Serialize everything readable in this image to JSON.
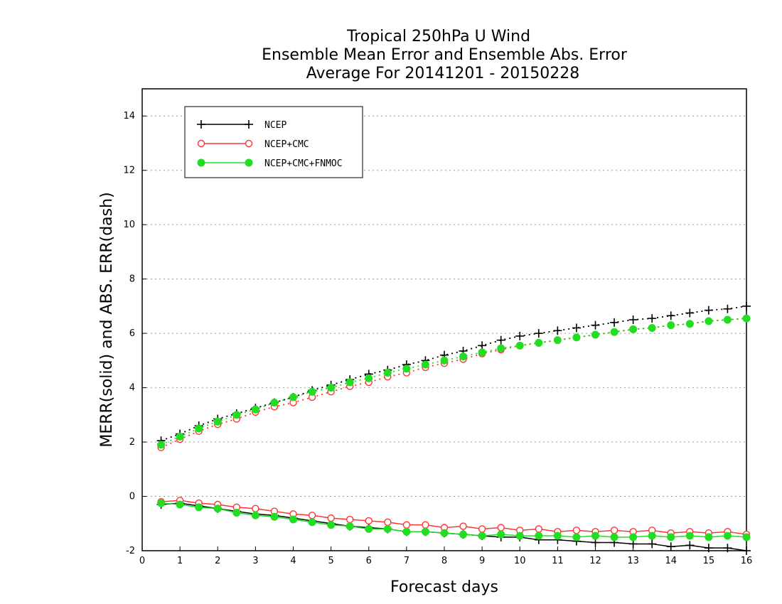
{
  "chart_data": {
    "type": "line",
    "title": [
      "Tropical 250hPa U Wind",
      "Ensemble Mean Error and Ensemble Abs. Error",
      "Average For 20141201 - 20150228"
    ],
    "xlabel": "Forecast days",
    "ylabel": "MERR(solid) and ABS. ERR(dash)",
    "xlim": [
      0,
      16
    ],
    "ylim": [
      -2,
      15
    ],
    "x_ticks": [
      "0",
      "1",
      "2",
      "3",
      "4",
      "5",
      "6",
      "7",
      "8",
      "9",
      "10",
      "11",
      "12",
      "13",
      "14",
      "15",
      "16"
    ],
    "y_ticks": [
      "-2",
      "0",
      "2",
      "4",
      "6",
      "8",
      "10",
      "12",
      "14"
    ],
    "grid": "horizontal dotted",
    "legend_position": "top-left",
    "x": [
      0.5,
      1,
      1.5,
      2,
      2.5,
      3,
      3.5,
      4,
      4.5,
      5,
      5.5,
      6,
      6.5,
      7,
      7.5,
      8,
      8.5,
      9,
      9.5,
      10,
      10.5,
      11,
      11.5,
      12,
      12.5,
      13,
      13.5,
      14,
      14.5,
      15,
      15.5,
      16
    ],
    "series": [
      {
        "name": "NCEP",
        "color": "#000000",
        "marker": "plus",
        "mean_error": [
          -0.3,
          -0.25,
          -0.35,
          -0.45,
          -0.55,
          -0.65,
          -0.7,
          -0.8,
          -0.9,
          -1.0,
          -1.1,
          -1.15,
          -1.2,
          -1.3,
          -1.3,
          -1.35,
          -1.4,
          -1.45,
          -1.5,
          -1.5,
          -1.6,
          -1.6,
          -1.65,
          -1.7,
          -1.7,
          -1.75,
          -1.75,
          -1.85,
          -1.8,
          -1.9,
          -1.9,
          -2.0
        ],
        "abs_error": [
          2.05,
          2.3,
          2.6,
          2.85,
          3.05,
          3.25,
          3.45,
          3.65,
          3.9,
          4.1,
          4.3,
          4.5,
          4.65,
          4.85,
          5.0,
          5.2,
          5.35,
          5.55,
          5.75,
          5.9,
          6.0,
          6.1,
          6.2,
          6.3,
          6.4,
          6.5,
          6.55,
          6.65,
          6.75,
          6.85,
          6.9,
          7.0
        ]
      },
      {
        "name": "NCEP+CMC",
        "color": "#ff3333",
        "marker": "open-circle",
        "mean_error": [
          -0.2,
          -0.15,
          -0.25,
          -0.3,
          -0.4,
          -0.45,
          -0.55,
          -0.65,
          -0.7,
          -0.8,
          -0.85,
          -0.9,
          -0.95,
          -1.05,
          -1.05,
          -1.15,
          -1.1,
          -1.2,
          -1.15,
          -1.25,
          -1.2,
          -1.3,
          -1.25,
          -1.3,
          -1.25,
          -1.3,
          -1.25,
          -1.35,
          -1.3,
          -1.35,
          -1.3,
          -1.4
        ],
        "abs_error": [
          1.8,
          2.1,
          2.4,
          2.65,
          2.85,
          3.1,
          3.3,
          3.45,
          3.65,
          3.85,
          4.05,
          4.2,
          4.4,
          4.55,
          4.75,
          4.9,
          5.05,
          5.25,
          5.4,
          5.55,
          5.65,
          5.75,
          5.85,
          5.95,
          6.05,
          6.15,
          6.2,
          6.3,
          6.35,
          6.45,
          6.5,
          6.55
        ]
      },
      {
        "name": "NCEP+CMC+FNMOC",
        "color": "#22dd22",
        "marker": "filled-circle",
        "mean_error": [
          -0.25,
          -0.3,
          -0.4,
          -0.45,
          -0.6,
          -0.7,
          -0.75,
          -0.85,
          -0.95,
          -1.05,
          -1.1,
          -1.2,
          -1.2,
          -1.3,
          -1.3,
          -1.35,
          -1.4,
          -1.45,
          -1.4,
          -1.45,
          -1.45,
          -1.45,
          -1.5,
          -1.45,
          -1.5,
          -1.5,
          -1.45,
          -1.5,
          -1.45,
          -1.5,
          -1.45,
          -1.5
        ],
        "abs_error": [
          1.9,
          2.2,
          2.5,
          2.75,
          3.0,
          3.2,
          3.45,
          3.65,
          3.85,
          4.0,
          4.2,
          4.35,
          4.55,
          4.7,
          4.85,
          5.0,
          5.15,
          5.3,
          5.45,
          5.55,
          5.65,
          5.75,
          5.85,
          5.95,
          6.05,
          6.15,
          6.2,
          6.3,
          6.35,
          6.45,
          6.5,
          6.55
        ]
      }
    ]
  }
}
